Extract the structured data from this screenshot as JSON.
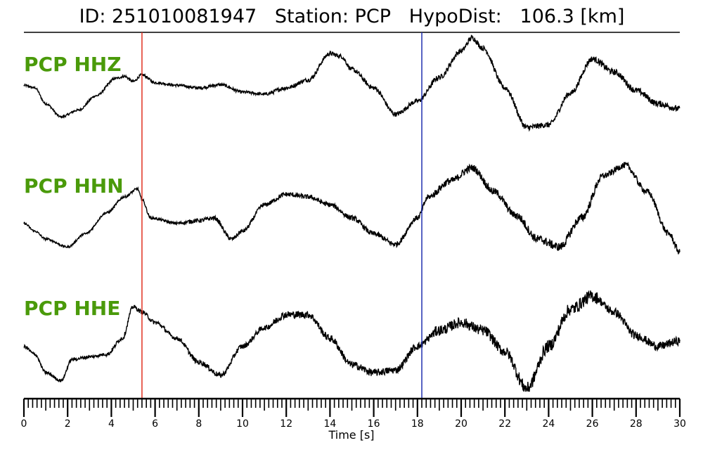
{
  "header": {
    "id_label": "ID:",
    "id_value": "251010081947",
    "station_label": "Station:",
    "station_value": "PCP",
    "hypodist_label": "HypoDist:",
    "hypodist_value": "106.3 [km]"
  },
  "colors": {
    "trace": "#000000",
    "label": "#4a9a0a",
    "p_pick": "#e03020",
    "s_pick": "#2030b0"
  },
  "chart_data": {
    "type": "line",
    "title": "ID: 251010081947   Station: PCP   HypoDist:   106.3 [km]",
    "xlabel": "Time [s]",
    "xlim": [
      0,
      30
    ],
    "xticks": [
      0,
      2,
      4,
      6,
      8,
      10,
      12,
      14,
      16,
      18,
      20,
      22,
      24,
      26,
      28,
      30
    ],
    "minor_tick_step": 0.2,
    "picks": [
      {
        "type": "P",
        "time": 5.4,
        "color": "#e03020"
      },
      {
        "type": "S",
        "time": 18.2,
        "color": "#2030b0"
      }
    ],
    "series": [
      {
        "name": "PCP HHZ",
        "noise": [
          0.02,
          0.025,
          0.03,
          0.04,
          0.045,
          0.05,
          0.055,
          0.06
        ],
        "points": [
          [
            0,
            0.05
          ],
          [
            0.5,
            0.0
          ],
          [
            1.0,
            -0.3
          ],
          [
            1.7,
            -0.55
          ],
          [
            2.5,
            -0.42
          ],
          [
            3.3,
            -0.15
          ],
          [
            4.2,
            0.18
          ],
          [
            4.6,
            0.22
          ],
          [
            5.0,
            0.12
          ],
          [
            5.4,
            0.25
          ],
          [
            6,
            0.1
          ],
          [
            7,
            0.05
          ],
          [
            8,
            0.0
          ],
          [
            9,
            0.06
          ],
          [
            10,
            -0.08
          ],
          [
            11,
            -0.12
          ],
          [
            12,
            0.0
          ],
          [
            13,
            0.15
          ],
          [
            14.0,
            0.65
          ],
          [
            14.5,
            0.6
          ],
          [
            15,
            0.35
          ],
          [
            16,
            0.0
          ],
          [
            17,
            -0.5
          ],
          [
            18,
            -0.25
          ],
          [
            19,
            0.2
          ],
          [
            20,
            0.7
          ],
          [
            20.5,
            0.95
          ],
          [
            21,
            0.75
          ],
          [
            22,
            0.0
          ],
          [
            23,
            -0.75
          ],
          [
            24,
            -0.7
          ],
          [
            25,
            -0.1
          ],
          [
            26,
            0.55
          ],
          [
            27,
            0.3
          ],
          [
            28,
            -0.05
          ],
          [
            29,
            -0.3
          ],
          [
            30,
            -0.4
          ]
        ]
      },
      {
        "name": "PCP HHN",
        "noise": [
          0.02,
          0.025,
          0.04,
          0.045,
          0.05,
          0.07,
          0.08,
          0.06
        ],
        "points": [
          [
            0,
            -0.3
          ],
          [
            0.5,
            -0.45
          ],
          [
            1.0,
            -0.6
          ],
          [
            2.0,
            -0.75
          ],
          [
            2.8,
            -0.5
          ],
          [
            3.8,
            -0.1
          ],
          [
            4.6,
            0.2
          ],
          [
            5.2,
            0.35
          ],
          [
            5.4,
            0.15
          ],
          [
            5.8,
            -0.2
          ],
          [
            7,
            -0.3
          ],
          [
            8,
            -0.25
          ],
          [
            8.7,
            -0.2
          ],
          [
            9.5,
            -0.6
          ],
          [
            10,
            -0.45
          ],
          [
            11,
            0.05
          ],
          [
            12,
            0.25
          ],
          [
            13,
            0.2
          ],
          [
            14,
            0.05
          ],
          [
            15,
            -0.2
          ],
          [
            16,
            -0.5
          ],
          [
            17,
            -0.7
          ],
          [
            18,
            -0.2
          ],
          [
            18.5,
            0.2
          ],
          [
            19.5,
            0.5
          ],
          [
            20.5,
            0.75
          ],
          [
            21.5,
            0.3
          ],
          [
            22.5,
            -0.15
          ],
          [
            23.5,
            -0.6
          ],
          [
            24.5,
            -0.75
          ],
          [
            25.5,
            -0.2
          ],
          [
            26.5,
            0.6
          ],
          [
            27.5,
            0.8
          ],
          [
            28.5,
            0.3
          ],
          [
            29.5,
            -0.5
          ],
          [
            30,
            -0.85
          ]
        ]
      },
      {
        "name": "PCP HHE",
        "noise": [
          0.03,
          0.04,
          0.05,
          0.07,
          0.07,
          0.1,
          0.12,
          0.08
        ],
        "points": [
          [
            0,
            -0.3
          ],
          [
            0.5,
            -0.45
          ],
          [
            1.0,
            -0.8
          ],
          [
            1.7,
            -0.95
          ],
          [
            2.2,
            -0.55
          ],
          [
            3.0,
            -0.5
          ],
          [
            3.8,
            -0.45
          ],
          [
            4.5,
            -0.15
          ],
          [
            5.0,
            0.45
          ],
          [
            5.4,
            0.35
          ],
          [
            6,
            0.15
          ],
          [
            7,
            -0.15
          ],
          [
            8,
            -0.6
          ],
          [
            9,
            -0.85
          ],
          [
            10,
            -0.3
          ],
          [
            11,
            0.05
          ],
          [
            12,
            0.3
          ],
          [
            13,
            0.3
          ],
          [
            14,
            -0.15
          ],
          [
            15,
            -0.65
          ],
          [
            16,
            -0.8
          ],
          [
            17,
            -0.75
          ],
          [
            18,
            -0.3
          ],
          [
            19,
            0.0
          ],
          [
            20,
            0.15
          ],
          [
            21,
            0.0
          ],
          [
            22,
            -0.4
          ],
          [
            23,
            -1.1
          ],
          [
            24,
            -0.3
          ],
          [
            25,
            0.4
          ],
          [
            26,
            0.65
          ],
          [
            27,
            0.35
          ],
          [
            28,
            -0.1
          ],
          [
            29,
            -0.3
          ],
          [
            30,
            -0.2
          ]
        ]
      }
    ]
  }
}
